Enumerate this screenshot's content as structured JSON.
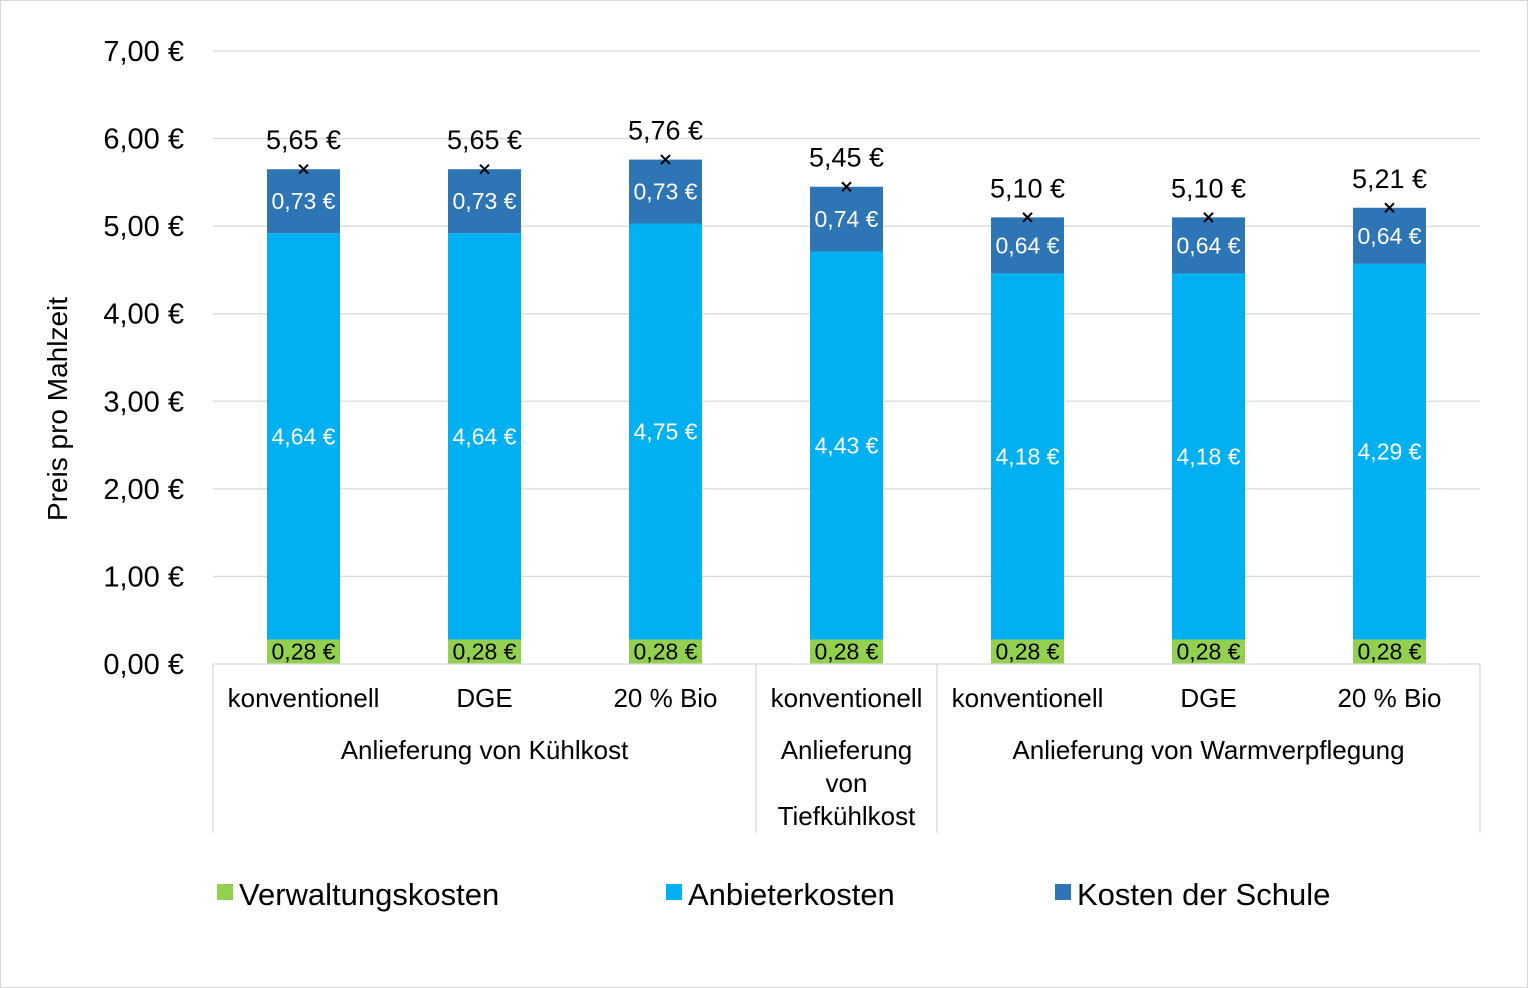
{
  "chart_data": {
    "type": "bar",
    "stacked": true,
    "title": "",
    "xlabel": "",
    "ylabel": "Preis pro Mahlzeit",
    "ylim": [
      0,
      7
    ],
    "yticks": [
      0,
      1,
      2,
      3,
      4,
      5,
      6,
      7
    ],
    "ytick_labels": [
      "0,00 €",
      "1,00 €",
      "2,00 €",
      "3,00 €",
      "4,00 €",
      "5,00 €",
      "6,00 €",
      "7,00 €"
    ],
    "grid": true,
    "legend_position": "bottom",
    "categories": [
      "konventionell",
      "DGE",
      "20 % Bio",
      "konventionell",
      "konventionell",
      "DGE",
      "20 % Bio"
    ],
    "groups": [
      {
        "label_lines": [
          "Anlieferung von Kühlkost"
        ],
        "count": 3
      },
      {
        "label_lines": [
          "Anlieferung",
          "von",
          "Tiefkühlkost"
        ],
        "count": 1
      },
      {
        "label_lines": [
          "Anlieferung von Warmverpflegung"
        ],
        "count": 3
      }
    ],
    "series": [
      {
        "name": "Verwaltungskosten",
        "color": "#92d050",
        "label_color": "#000000",
        "values": [
          0.28,
          0.28,
          0.28,
          0.28,
          0.28,
          0.28,
          0.28
        ],
        "labels": [
          "0,28 €",
          "0,28 €",
          "0,28 €",
          "0,28 €",
          "0,28 €",
          "0,28 €",
          "0,28 €"
        ]
      },
      {
        "name": "Anbieterkosten",
        "color": "#00b0f0",
        "label_color": "#ffffff",
        "values": [
          4.64,
          4.64,
          4.75,
          4.43,
          4.18,
          4.18,
          4.29
        ],
        "labels": [
          "4,64 €",
          "4,64 €",
          "4,75 €",
          "4,43 €",
          "4,18 €",
          "4,18 €",
          "4,29 €"
        ]
      },
      {
        "name": "Kosten der Schule",
        "color": "#2e75b6",
        "label_color": "#ffffff",
        "values": [
          0.73,
          0.73,
          0.73,
          0.74,
          0.64,
          0.64,
          0.64
        ],
        "labels": [
          "0,73 €",
          "0,73 €",
          "0,73 €",
          "0,74 €",
          "0,64 €",
          "0,64 €",
          "0,64 €"
        ]
      }
    ],
    "totals": {
      "marker": "x",
      "values": [
        5.65,
        5.65,
        5.76,
        5.45,
        5.1,
        5.1,
        5.21
      ],
      "labels": [
        "5,65 €",
        "5,65 €",
        "5,76 €",
        "5,45 €",
        "5,10 €",
        "5,10 €",
        "5,21 €"
      ]
    }
  }
}
